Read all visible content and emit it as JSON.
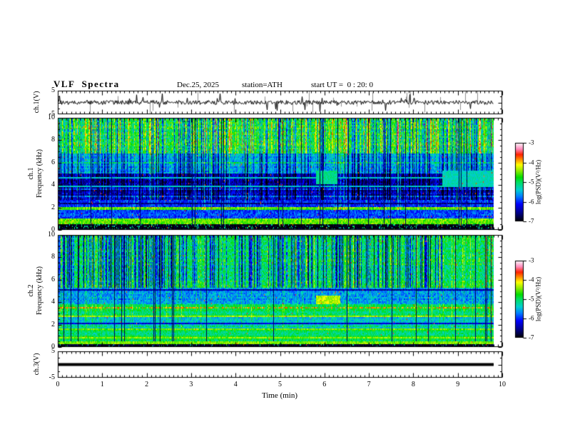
{
  "header": {
    "title": "VLF  Spectra",
    "date": "Dec.25, 2025",
    "station": "station=ATH",
    "start_ut": "start UT =  0 : 20: 0"
  },
  "x_axis": {
    "label": "Time (min)",
    "ticks": [
      0,
      1,
      2,
      3,
      4,
      5,
      6,
      7,
      8,
      9,
      10
    ],
    "range": [
      0,
      10
    ],
    "minor_step": 0.1
  },
  "y_labels": {
    "ch1v": "ch.1(V)",
    "ch1": "ch.1",
    "freq1": "Frequency (kHz)",
    "ch2": "ch.2",
    "freq2": "Frequency (kHz)",
    "ch3v": "ch.3(V)"
  },
  "colorbar": {
    "label": "log(PSD)(V²/Hz)",
    "ticks": [
      -3,
      -4,
      -5,
      -6,
      -7
    ],
    "range": [
      -7,
      -3
    ],
    "stops": [
      {
        "t": 0.0,
        "c": "#000000"
      },
      {
        "t": 0.1,
        "c": "#000080"
      },
      {
        "t": 0.22,
        "c": "#0000ff"
      },
      {
        "t": 0.32,
        "c": "#0080ff"
      },
      {
        "t": 0.4,
        "c": "#00d0d0"
      },
      {
        "t": 0.5,
        "c": "#00e060"
      },
      {
        "t": 0.56,
        "c": "#00dd00"
      },
      {
        "t": 0.65,
        "c": "#99ee00"
      },
      {
        "t": 0.72,
        "c": "#ffff00"
      },
      {
        "t": 0.78,
        "c": "#ff9900"
      },
      {
        "t": 0.85,
        "c": "#ff2200"
      },
      {
        "t": 0.92,
        "c": "#ff88bb"
      },
      {
        "t": 1.0,
        "c": "#ffffff"
      }
    ]
  },
  "chart_data": [
    {
      "type": "line",
      "id": "ch1_waveform",
      "ylabel": "ch.1(V)",
      "ylim": [
        -5,
        5
      ],
      "yticks": [
        5,
        -5
      ],
      "x_end_min": 9.8,
      "baseline_v": 0,
      "noise_amp_v": 0.9,
      "spike_prob": 0.06,
      "spike_amp_v": 3.5,
      "line_color": "#000000",
      "seed": 11,
      "description": "broadband noise around 0 V with impulsive spikes reaching ±5 V over 0–9.8 min"
    },
    {
      "type": "heatmap",
      "id": "ch1_spectrogram",
      "ylabel": "ch.1 Frequency (kHz)",
      "ylim": [
        0,
        10
      ],
      "yticks": [
        10,
        8,
        6,
        4,
        2,
        0
      ],
      "zlim": [
        -7,
        -3
      ],
      "x_end_min": 9.8,
      "seed": 7,
      "bands": [
        {
          "f": [
            6.8,
            10
          ],
          "level": -4.9,
          "noise": 0.45
        },
        {
          "f": [
            5.1,
            6.8
          ],
          "level": -5.5,
          "noise": 0.35
        },
        {
          "f": [
            2.6,
            5.1
          ],
          "level": -6.35,
          "noise": 0.4
        },
        {
          "f": [
            2.0,
            2.6
          ],
          "level": -6.0,
          "noise": 0.35
        },
        {
          "f": [
            1.75,
            2.0
          ],
          "level": -4.6,
          "noise": 0.25
        },
        {
          "f": [
            1.0,
            1.75
          ],
          "level": -5.95,
          "noise": 0.35
        },
        {
          "f": [
            0.45,
            1.0
          ],
          "level": -4.6,
          "noise": 0.3
        },
        {
          "f": [
            0,
            0.45
          ],
          "level": -6.9,
          "noise": 0.25,
          "speck": {
            "prob": 0.12,
            "level": -5.2
          }
        }
      ],
      "hlines": [
        {
          "f": 3.9,
          "w": 0.05,
          "level": -5.4
        },
        {
          "f": 4.6,
          "w": 0.05,
          "level": -5.4
        },
        {
          "f": 2.32,
          "w": 0.05,
          "level": -6.6
        }
      ],
      "row_streak": {
        "f": [
          2.6,
          6.8
        ],
        "prob": 0.09,
        "boost": 0.55
      },
      "stripes": {
        "above_f": 2.6,
        "prob": 0.3,
        "depth": 0.85,
        "x_end_min": 9.8
      },
      "light_stripes": {
        "above_f": 1.75,
        "prob": 0.1,
        "boost": 0.5
      },
      "black_lines_prob": 0.035,
      "top_streaks": {
        "above_f": 6.8,
        "prob": 0.28,
        "boost": 0.65
      },
      "speckle": {
        "prob": 0.004,
        "level": -3.7
      },
      "patches": [
        {
          "x": [
            5.8,
            6.3
          ],
          "f": [
            4.0,
            5.3
          ],
          "level": -5.15,
          "noise": 0.2
        },
        {
          "x": [
            8.65,
            9.8
          ],
          "f": [
            3.8,
            5.3
          ],
          "level": -5.3,
          "noise": 0.2
        }
      ]
    },
    {
      "type": "heatmap",
      "id": "ch2_spectrogram",
      "ylabel": "ch.2 Frequency (kHz)",
      "ylim": [
        0,
        10
      ],
      "yticks": [
        10,
        8,
        6,
        4,
        2,
        0
      ],
      "zlim": [
        -7,
        -3
      ],
      "x_end_min": 9.8,
      "seed": 23,
      "bands": [
        {
          "f": [
            5.3,
            10
          ],
          "level": -5.0,
          "noise": 0.4
        },
        {
          "f": [
            3.8,
            5.3
          ],
          "level": -5.6,
          "noise": 0.35
        },
        {
          "f": [
            2.8,
            3.8
          ],
          "level": -5.05,
          "noise": 0.3
        },
        {
          "f": [
            1.7,
            2.8
          ],
          "level": -5.5,
          "noise": 0.35
        },
        {
          "f": [
            0.55,
            1.7
          ],
          "level": -5.0,
          "noise": 0.3
        },
        {
          "f": [
            0.25,
            0.55
          ],
          "level": -4.6,
          "noise": 0.25
        },
        {
          "f": [
            0,
            0.25
          ],
          "level": -6.9,
          "noise": 0.25,
          "speck": {
            "prob": 0.08,
            "level": -5.2
          }
        }
      ],
      "hlines": [
        {
          "f": 5.1,
          "w": 0.07,
          "level": -6.5
        },
        {
          "f": 3.5,
          "w": 0.07,
          "level": -3.85,
          "flicker": 0.45
        },
        {
          "f": 2.7,
          "w": 0.05,
          "level": -4.4
        },
        {
          "f": 2.05,
          "w": 0.06,
          "level": -6.3
        },
        {
          "f": 1.6,
          "w": 0.05,
          "level": -4.5
        },
        {
          "f": 1.15,
          "w": 0.05,
          "level": -4.55
        },
        {
          "f": 0.8,
          "w": 0.05,
          "level": -4.45
        }
      ],
      "row_streak": {
        "f": [
          1.7,
          5.3
        ],
        "prob": 0.07,
        "boost": 0.4
      },
      "stripes": {
        "above_f": 5.3,
        "prob": 0.33,
        "depth": 1.2,
        "x_end_min": 8.65
      },
      "light_stripes": {
        "above_f": 1.7,
        "prob": 0.08,
        "boost": 0.4
      },
      "black_lines_prob": 0.045,
      "top_streaks": {
        "above_f": 5.3,
        "prob": 0.1,
        "boost": 0.5
      },
      "speckle": {
        "prob": 0.004,
        "level": -3.7
      },
      "patches": [
        {
          "x": [
            5.8,
            6.35
          ],
          "f": [
            3.8,
            4.6
          ],
          "level": -4.3,
          "noise": 0.25
        }
      ]
    },
    {
      "type": "line",
      "id": "ch3_waveform",
      "ylabel": "ch.3(V)",
      "ylim": [
        -5,
        5
      ],
      "yticks": [
        5,
        -5
      ],
      "x_end_min": 9.8,
      "flat_value_v": 0,
      "line_color": "#000000",
      "line_thickness_px": 4,
      "description": "constant 0 V flat thick line from 0 to 9.8 min"
    }
  ]
}
